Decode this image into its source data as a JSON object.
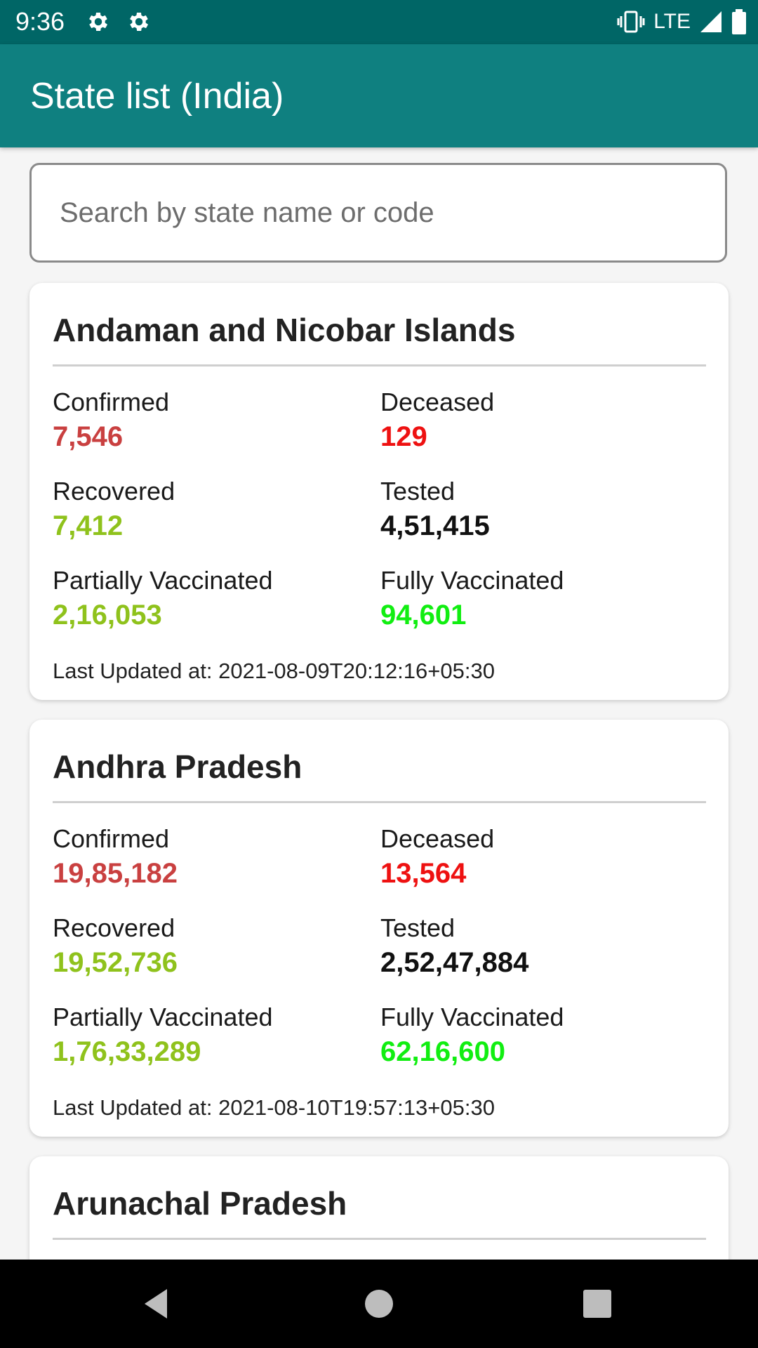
{
  "status_bar": {
    "time": "9:36",
    "network": "LTE",
    "icons": [
      "settings-icon",
      "settings-icon",
      "vibrate-icon",
      "signal-icon",
      "battery-icon"
    ]
  },
  "app_bar": {
    "title": "State list (India)"
  },
  "search": {
    "placeholder": "Search by state name or code"
  },
  "labels": {
    "confirmed": "Confirmed",
    "deceased": "Deceased",
    "recovered": "Recovered",
    "tested": "Tested",
    "partially_vaccinated": "Partially Vaccinated",
    "fully_vaccinated": "Fully Vaccinated"
  },
  "colors": {
    "status_bar": "#006666",
    "app_bar": "#0f8080",
    "confirmed": "#c94040",
    "deceased": "#ee1111",
    "recovered": "#8fc21c",
    "tested": "#111111",
    "fully_vaccinated": "#11ee11"
  },
  "states": [
    {
      "name": "Andaman and Nicobar Islands",
      "confirmed": "7,546",
      "deceased": "129",
      "recovered": "7,412",
      "tested": "4,51,415",
      "partially_vaccinated": "2,16,053",
      "fully_vaccinated": "94,601",
      "last_updated": "Last Updated at: 2021-08-09T20:12:16+05:30"
    },
    {
      "name": "Andhra Pradesh",
      "confirmed": "19,85,182",
      "deceased": "13,564",
      "recovered": "19,52,736",
      "tested": "2,52,47,884",
      "partially_vaccinated": "1,76,33,289",
      "fully_vaccinated": "62,16,600",
      "last_updated": "Last Updated at: 2021-08-10T19:57:13+05:30"
    },
    {
      "name": "Arunachal Pradesh"
    }
  ],
  "nav_bar": {
    "icons": [
      "back-icon",
      "home-icon",
      "recents-icon"
    ]
  }
}
